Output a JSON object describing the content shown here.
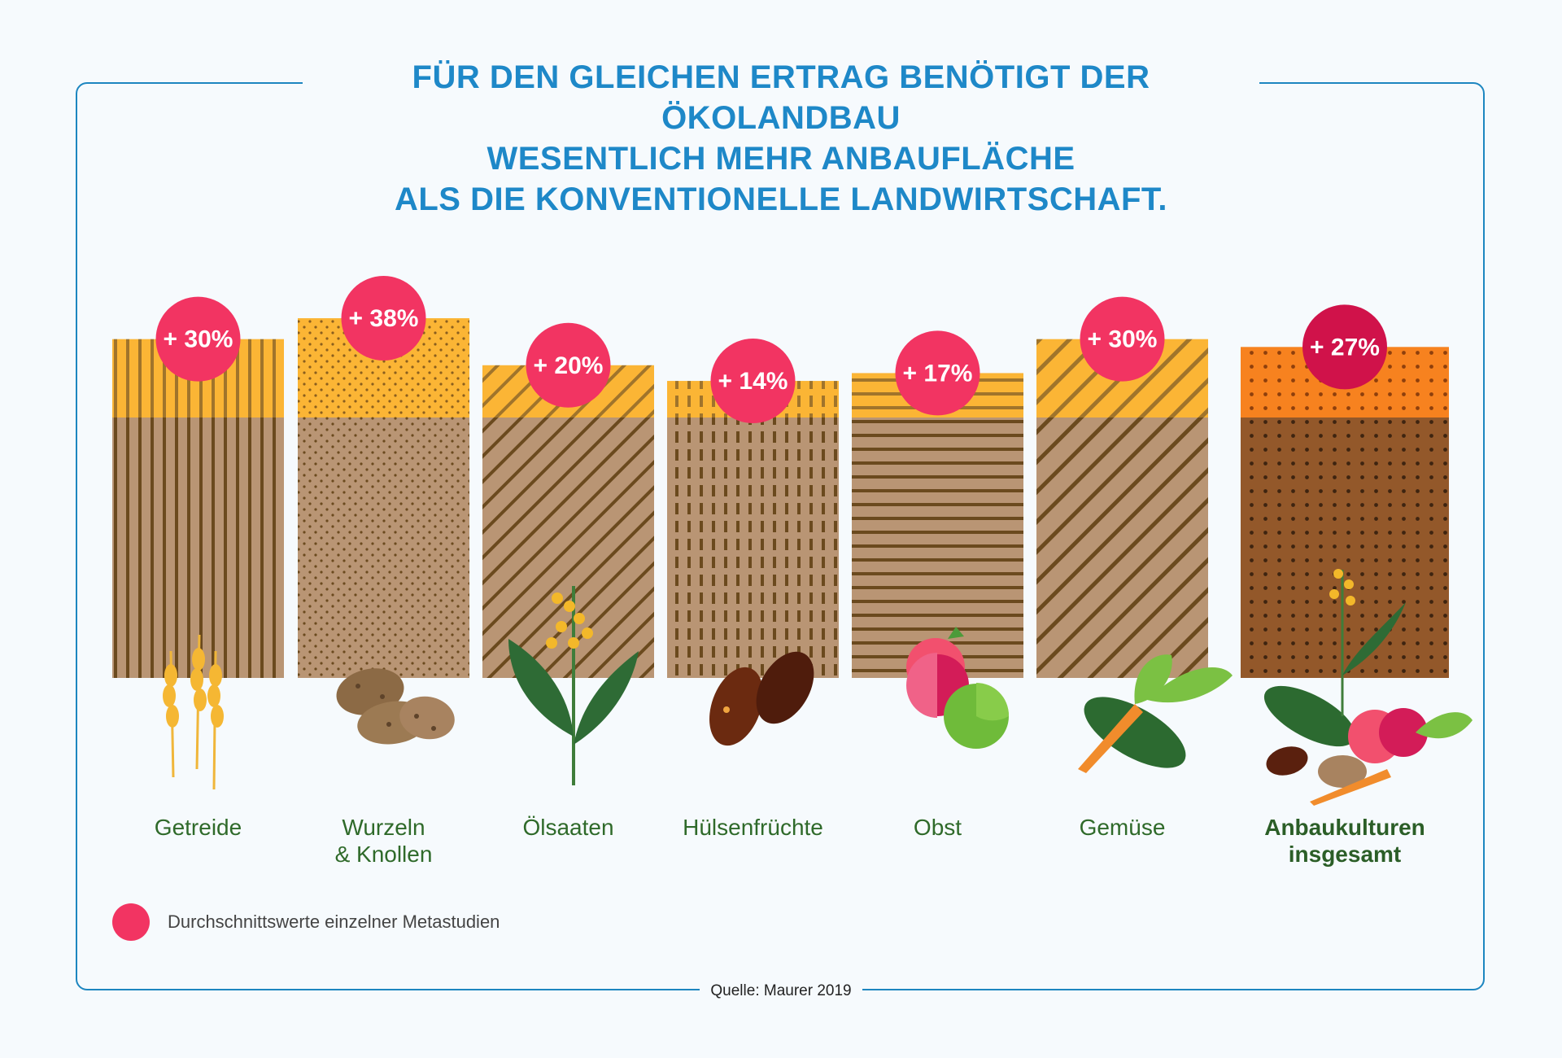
{
  "title": {
    "line1": "FÜR DEN GLEICHEN ERTRAG BENÖTIGT DER ÖKOLANDBAU",
    "line2": "WESENTLICH MEHR ANBAUFLÄCHE",
    "line3": "ALS DIE KONVENTIONELLE LANDWIRTSCHAFT."
  },
  "legend": {
    "label": "Durchschnittswerte einzelner Metastudien"
  },
  "source": "Quelle: Maurer 2019",
  "colors": {
    "title": "#1e88c8",
    "frame": "#1d86c0",
    "badge": "#f23462",
    "badge_total": "#d0124a",
    "label": "#2f6a2a",
    "extra_area": "#fbb535",
    "base_area": "#b99574"
  },
  "chart_data": {
    "type": "bar",
    "baseline_label": "",
    "unit": "%",
    "categories": [
      {
        "label": "Getreide",
        "value": 30,
        "badge": "+ 30%",
        "icon": "wheat-icon"
      },
      {
        "label": "Wurzeln\n& Knollen",
        "value": 38,
        "badge": "+ 38%",
        "icon": "potato-icon"
      },
      {
        "label": "Ölsaaten",
        "value": 20,
        "badge": "+ 20%",
        "icon": "rapeseed-icon"
      },
      {
        "label": "Hülsenfrüchte",
        "value": 14,
        "badge": "+ 14%",
        "icon": "bean-icon"
      },
      {
        "label": "Obst",
        "value": 17,
        "badge": "+ 17%",
        "icon": "apple-icon"
      },
      {
        "label": "Gemüse",
        "value": 30,
        "badge": "+ 30%",
        "icon": "vegetable-icon"
      },
      {
        "label": "Anbaukulturen\ninsgesamt",
        "value": 27,
        "badge": "+ 27%",
        "icon": "mixed-crops-icon",
        "emphasis": true
      }
    ]
  }
}
